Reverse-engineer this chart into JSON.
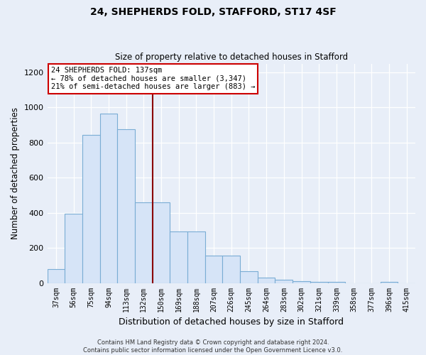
{
  "title1": "24, SHEPHERDS FOLD, STAFFORD, ST17 4SF",
  "title2": "Size of property relative to detached houses in Stafford",
  "xlabel": "Distribution of detached houses by size in Stafford",
  "ylabel": "Number of detached properties",
  "categories": [
    "37sqm",
    "56sqm",
    "75sqm",
    "94sqm",
    "113sqm",
    "132sqm",
    "150sqm",
    "169sqm",
    "188sqm",
    "207sqm",
    "226sqm",
    "245sqm",
    "264sqm",
    "283sqm",
    "302sqm",
    "321sqm",
    "339sqm",
    "358sqm",
    "377sqm",
    "396sqm",
    "415sqm"
  ],
  "values": [
    80,
    395,
    845,
    965,
    875,
    460,
    460,
    295,
    295,
    155,
    155,
    65,
    30,
    20,
    10,
    5,
    5,
    0,
    0,
    8,
    0
  ],
  "bar_color": "#d6e4f7",
  "bar_edge_color": "#7aadd4",
  "vline_x": 5.5,
  "vline_color": "#8b0000",
  "annotation_text": "24 SHEPHERDS FOLD: 137sqm\n← 78% of detached houses are smaller (3,347)\n21% of semi-detached houses are larger (883) →",
  "annotation_box_color": "#ffffff",
  "annotation_box_edge": "#cc0000",
  "ylim": [
    0,
    1250
  ],
  "yticks": [
    0,
    200,
    400,
    600,
    800,
    1000,
    1200
  ],
  "footnote": "Contains HM Land Registry data © Crown copyright and database right 2024.\nContains public sector information licensed under the Open Government Licence v3.0.",
  "bg_color": "#e8eef8",
  "plot_bg_color": "#e8eef8",
  "grid_color": "#ffffff"
}
